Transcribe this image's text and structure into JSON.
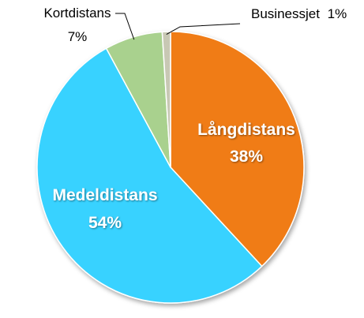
{
  "chart_data": {
    "type": "pie",
    "title": "",
    "slices": [
      {
        "label": "Långdistans",
        "value": 38,
        "value_label": "38%",
        "color": "#F07C12",
        "label_color": "#FFFFFF",
        "label_position": "inside"
      },
      {
        "label": "Medeldistans",
        "value": 54,
        "value_label": "54%",
        "color": "#38D2FF",
        "label_color": "#FFFFFF",
        "label_position": "inside"
      },
      {
        "label": "Kortdistans",
        "value": 7,
        "value_label": "7%",
        "color": "#A9D18E",
        "label_color": "#000000",
        "label_position": "outside"
      },
      {
        "label": "Businessjet",
        "value": 1,
        "value_label": "1%",
        "color": "#C8C8B4",
        "label_color": "#000000",
        "label_position": "outside"
      }
    ],
    "start_angle": "12 o'clock",
    "direction": "clockwise",
    "legend": "none"
  }
}
